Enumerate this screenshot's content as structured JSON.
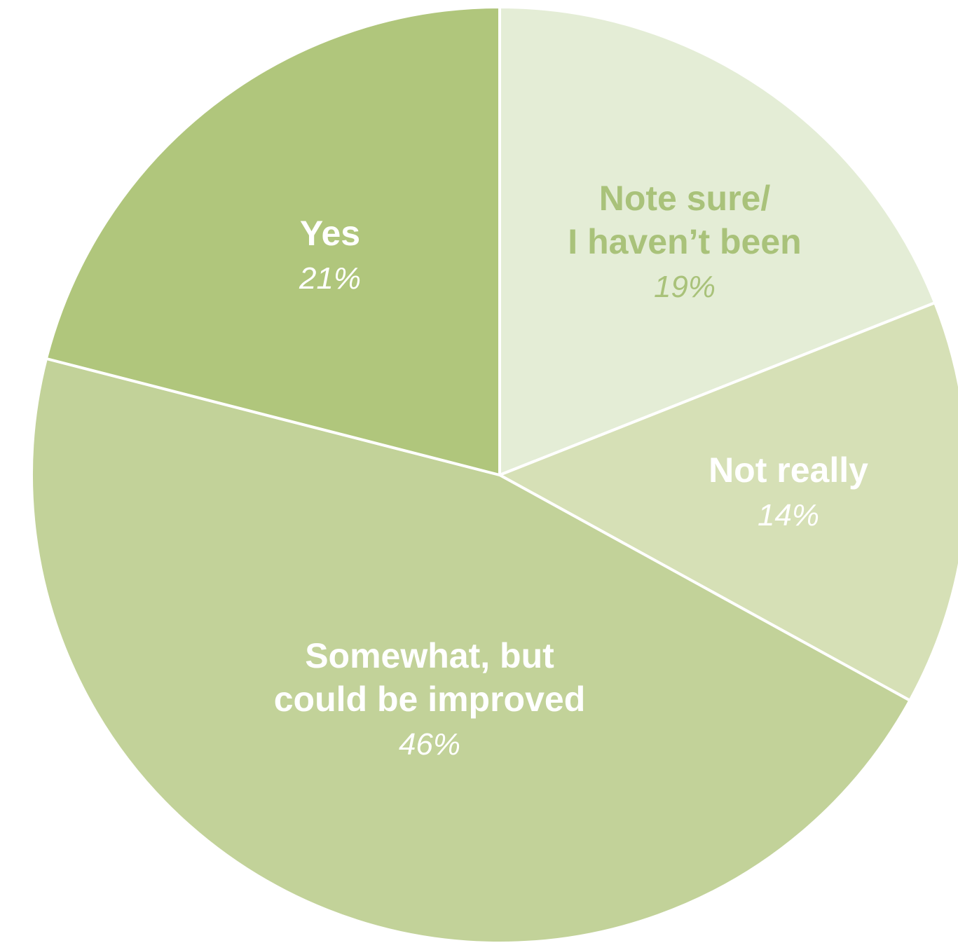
{
  "chart_data": {
    "type": "pie",
    "start_angle": "12 o'clock",
    "direction": "clockwise",
    "slices": [
      {
        "label_lines": [
          "Note sure/",
          "I haven’t been"
        ],
        "value": 19,
        "value_label": "19%",
        "color": "#e4edd6",
        "text_color": "#a9c27a"
      },
      {
        "label_lines": [
          "Not really"
        ],
        "value": 14,
        "value_label": "14%",
        "color": "#d6e0b6",
        "text_color": "#ffffff"
      },
      {
        "label_lines": [
          "Somewhat, but",
          "could be improved"
        ],
        "value": 46,
        "value_label": "46%",
        "color": "#c2d299",
        "text_color": "#ffffff"
      },
      {
        "label_lines": [
          "Yes"
        ],
        "value": 21,
        "value_label": "21%",
        "color": "#b0c67c",
        "text_color": "#ffffff"
      }
    ],
    "slice_border_color": "#ffffff"
  }
}
